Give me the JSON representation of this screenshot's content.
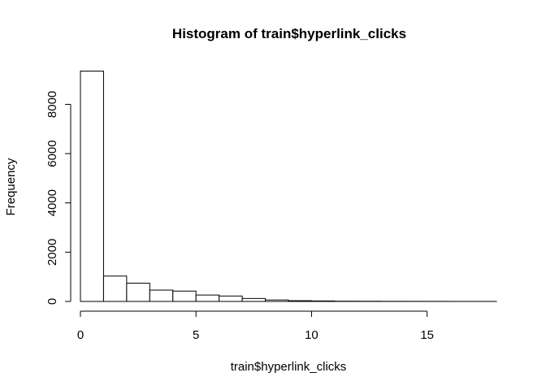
{
  "chart_data": {
    "type": "bar",
    "title": "Histogram of train$hyperlink_clicks",
    "xlabel": "train$hyperlink_clicks",
    "ylabel": "Frequency",
    "xlim": [
      0,
      18
    ],
    "ylim": [
      0,
      9300
    ],
    "x_ticks": [
      0,
      5,
      10,
      15
    ],
    "y_ticks": [
      0,
      2000,
      4000,
      6000,
      8000
    ],
    "bin_edges": [
      0,
      1,
      2,
      3,
      4,
      5,
      6,
      7,
      8,
      9,
      10,
      11,
      12,
      13,
      14,
      15,
      16,
      17,
      18
    ],
    "values": [
      9350,
      1030,
      740,
      460,
      420,
      260,
      220,
      120,
      60,
      30,
      20,
      10,
      8,
      5,
      4,
      3,
      2,
      2
    ],
    "grid": false,
    "legend": "none"
  }
}
